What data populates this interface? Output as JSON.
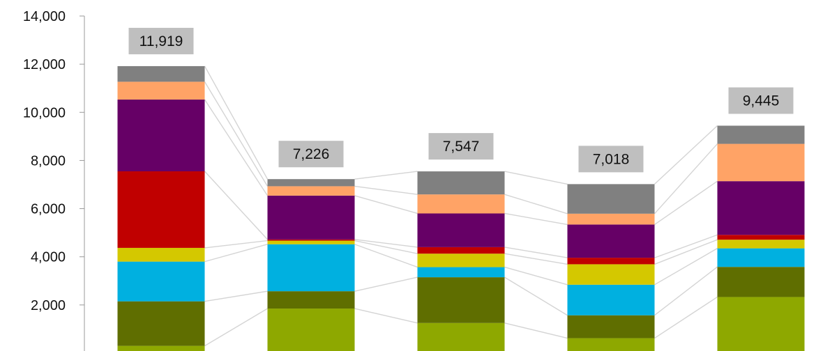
{
  "chart_data": {
    "type": "bar",
    "stacked": true,
    "categories": [
      "",
      "",
      "",
      "",
      ""
    ],
    "title": "",
    "xlabel": "",
    "ylabel": "",
    "ylim": [
      0,
      14000
    ],
    "yticks": [
      "2,000",
      "4,000",
      "6,000",
      "8,000",
      "10,000",
      "12,000",
      "14,000"
    ],
    "ytick_values": [
      2000,
      4000,
      6000,
      8000,
      10000,
      12000,
      14000
    ],
    "grid": false,
    "legend": "none",
    "connector_lines": true,
    "series": [
      {
        "color": "#8ea800",
        "values": [
          300,
          1850,
          1250,
          620,
          2330
        ]
      },
      {
        "color": "#5f6e00",
        "values": [
          1850,
          720,
          1900,
          950,
          1250
        ]
      },
      {
        "color": "#00b0e0",
        "values": [
          1650,
          1950,
          420,
          1270,
          770
        ]
      },
      {
        "color": "#d4c800",
        "values": [
          570,
          150,
          560,
          850,
          360
        ]
      },
      {
        "color": "#c00000",
        "values": [
          3180,
          50,
          270,
          270,
          200
        ]
      },
      {
        "color": "#660066",
        "values": [
          2980,
          1820,
          1400,
          1380,
          2230
        ]
      },
      {
        "color": "#ffa366",
        "values": [
          740,
          390,
          790,
          450,
          1550
        ]
      },
      {
        "color": "#808080",
        "values": [
          649,
          296,
          957,
          1228,
          755
        ]
      }
    ],
    "totals": [
      11919,
      7226,
      7547,
      7018,
      9445
    ],
    "total_labels": [
      "11,919",
      "7,226",
      "7,547",
      "7,018",
      "9,445"
    ]
  }
}
